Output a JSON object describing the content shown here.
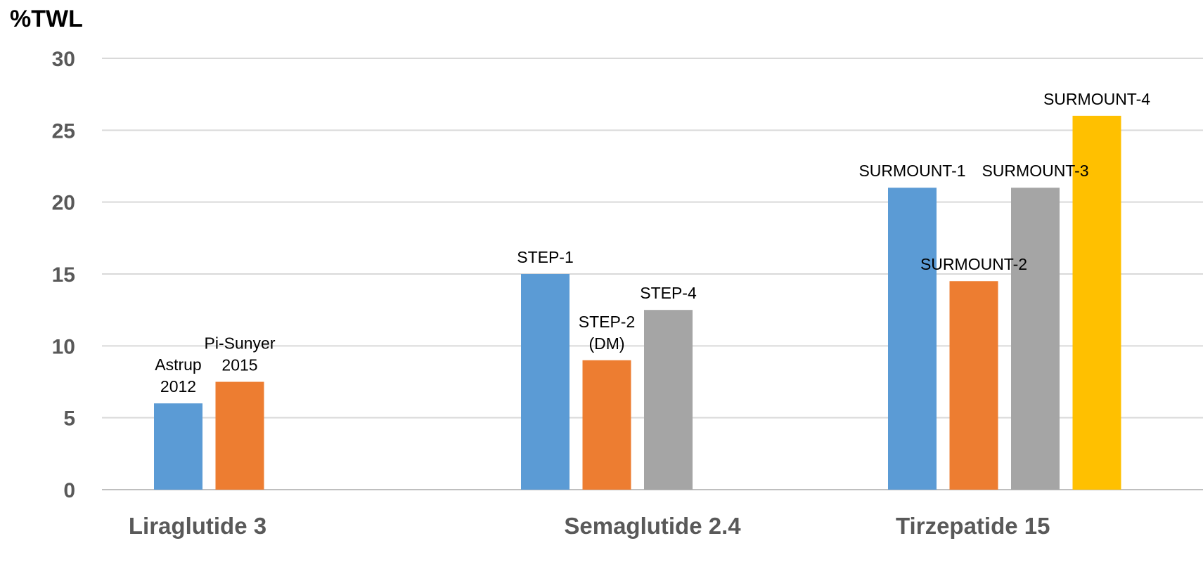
{
  "chart_data": {
    "type": "bar",
    "title": "",
    "ylabel": "%TWL",
    "xlabel": "",
    "ylim": [
      0,
      30
    ],
    "yticks": [
      0,
      5,
      10,
      15,
      20,
      25,
      30
    ],
    "grid": true,
    "categories": [
      "Liraglutide 3",
      "Semaglutide 2.4",
      "Tirzepatide 15"
    ],
    "groups": [
      {
        "category": "Liraglutide 3",
        "bars": [
          {
            "label": [
              "Astrup",
              "2012"
            ],
            "value": 6,
            "color": "#5B9BD5"
          },
          {
            "label": [
              "Pi-Sunyer",
              "2015"
            ],
            "value": 7.5,
            "color": "#ED7D31"
          }
        ]
      },
      {
        "category": "Semaglutide 2.4",
        "bars": [
          {
            "label": [
              "STEP-1"
            ],
            "value": 15,
            "color": "#5B9BD5"
          },
          {
            "label": [
              "STEP-2",
              "(DM)"
            ],
            "value": 9,
            "color": "#ED7D31"
          },
          {
            "label": [
              "STEP-4"
            ],
            "value": 12.5,
            "color": "#A5A5A5"
          }
        ]
      },
      {
        "category": "Tirzepatide 15",
        "bars": [
          {
            "label": [
              "SURMOUNT-1"
            ],
            "value": 21,
            "color": "#5B9BD5"
          },
          {
            "label": [
              "SURMOUNT-2"
            ],
            "value": 14.5,
            "color": "#ED7D31"
          },
          {
            "label": [
              "SURMOUNT-3"
            ],
            "value": 21,
            "color": "#A5A5A5"
          },
          {
            "label": [
              "SURMOUNT-4"
            ],
            "value": 26,
            "color": "#FFC000"
          }
        ]
      }
    ]
  }
}
